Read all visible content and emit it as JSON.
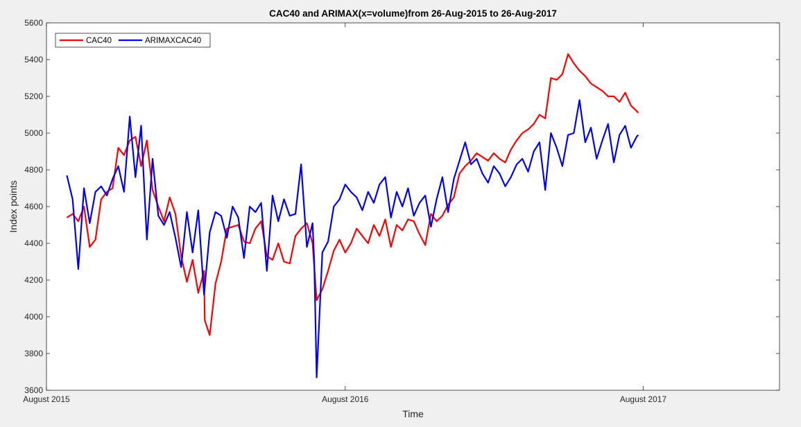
{
  "chart_data": {
    "type": "line",
    "title": "CAC40 and ARIMAX(x=volume)from 26-Aug-2015 to 26-Aug-2017",
    "xlabel": "Time",
    "ylabel": "Index points",
    "xlim": [
      "2015-08-01",
      "2018-01-15"
    ],
    "ylim": [
      3600,
      5600
    ],
    "yticks": [
      3600,
      3800,
      4000,
      4200,
      4400,
      4600,
      4800,
      5000,
      5200,
      5400,
      5600
    ],
    "xticks": [
      {
        "date": "2015-08-01",
        "label": "August 2015"
      },
      {
        "date": "2016-08-01",
        "label": "August 2016"
      },
      {
        "date": "2017-08-01",
        "label": "August 2017"
      }
    ],
    "grid": false,
    "legend": "top-left",
    "colors": {
      "CAC40": "#ff0000",
      "ARIMAXCAC40": "#0000ff"
    },
    "series": [
      {
        "name": "CAC40",
        "x": [
          "2015-08-26",
          "2015-09-02",
          "2015-09-09",
          "2015-09-16",
          "2015-09-23",
          "2015-09-30",
          "2015-10-07",
          "2015-10-14",
          "2015-10-21",
          "2015-10-28",
          "2015-11-04",
          "2015-11-11",
          "2015-11-18",
          "2015-11-25",
          "2015-12-02",
          "2015-12-09",
          "2015-12-16",
          "2015-12-23",
          "2015-12-30",
          "2016-01-06",
          "2016-01-13",
          "2016-01-20",
          "2016-01-27",
          "2016-02-03",
          "2016-02-10",
          "2016-02-11",
          "2016-02-17",
          "2016-02-24",
          "2016-03-02",
          "2016-03-09",
          "2016-03-16",
          "2016-03-23",
          "2016-03-30",
          "2016-04-06",
          "2016-04-13",
          "2016-04-20",
          "2016-04-27",
          "2016-05-04",
          "2016-05-11",
          "2016-05-18",
          "2016-05-25",
          "2016-06-01",
          "2016-06-08",
          "2016-06-15",
          "2016-06-22",
          "2016-06-27",
          "2016-07-04",
          "2016-07-11",
          "2016-07-18",
          "2016-07-25",
          "2016-08-01",
          "2016-08-08",
          "2016-08-15",
          "2016-08-22",
          "2016-08-29",
          "2016-09-05",
          "2016-09-12",
          "2016-09-19",
          "2016-09-26",
          "2016-10-03",
          "2016-10-10",
          "2016-10-17",
          "2016-10-24",
          "2016-10-31",
          "2016-11-07",
          "2016-11-14",
          "2016-11-21",
          "2016-11-28",
          "2016-12-05",
          "2016-12-12",
          "2016-12-19",
          "2016-12-26",
          "2017-01-02",
          "2017-01-09",
          "2017-01-16",
          "2017-01-23",
          "2017-01-30",
          "2017-02-06",
          "2017-02-13",
          "2017-02-20",
          "2017-02-27",
          "2017-03-06",
          "2017-03-13",
          "2017-03-20",
          "2017-03-27",
          "2017-04-03",
          "2017-04-10",
          "2017-04-17",
          "2017-04-24",
          "2017-05-01",
          "2017-05-08",
          "2017-05-15",
          "2017-05-22",
          "2017-05-29",
          "2017-06-05",
          "2017-06-12",
          "2017-06-19",
          "2017-06-26",
          "2017-07-03",
          "2017-07-10",
          "2017-07-17",
          "2017-07-24",
          "2017-07-26"
        ],
        "values": [
          4540,
          4560,
          4520,
          4600,
          4380,
          4420,
          4640,
          4680,
          4700,
          4920,
          4880,
          4960,
          4980,
          4820,
          4960,
          4690,
          4600,
          4520,
          4650,
          4560,
          4330,
          4190,
          4310,
          4130,
          4250,
          3980,
          3900,
          4180,
          4300,
          4480,
          4490,
          4500,
          4410,
          4400,
          4480,
          4520,
          4330,
          4310,
          4400,
          4300,
          4290,
          4440,
          4480,
          4510,
          4400,
          4090,
          4150,
          4250,
          4360,
          4420,
          4350,
          4400,
          4480,
          4440,
          4400,
          4500,
          4440,
          4530,
          4380,
          4500,
          4470,
          4530,
          4520,
          4450,
          4390,
          4560,
          4520,
          4550,
          4610,
          4650,
          4780,
          4820,
          4850,
          4890,
          4870,
          4850,
          4890,
          4860,
          4840,
          4910,
          4960,
          5000,
          5020,
          5050,
          5100,
          5080,
          5300,
          5290,
          5320,
          5430,
          5380,
          5340,
          5310,
          5270,
          5250,
          5230,
          5200,
          5200,
          5170,
          5220,
          5150,
          5120,
          5110
        ]
      },
      {
        "name": "ARIMAXCAC40",
        "x": [
          "2015-08-26",
          "2015-09-02",
          "2015-09-09",
          "2015-09-16",
          "2015-09-23",
          "2015-09-30",
          "2015-10-07",
          "2015-10-14",
          "2015-10-21",
          "2015-10-28",
          "2015-11-04",
          "2015-11-11",
          "2015-11-18",
          "2015-11-25",
          "2015-12-02",
          "2015-12-09",
          "2015-12-16",
          "2015-12-23",
          "2015-12-30",
          "2016-01-06",
          "2016-01-13",
          "2016-01-20",
          "2016-01-27",
          "2016-02-03",
          "2016-02-10",
          "2016-02-17",
          "2016-02-24",
          "2016-03-02",
          "2016-03-09",
          "2016-03-16",
          "2016-03-23",
          "2016-03-30",
          "2016-04-06",
          "2016-04-13",
          "2016-04-20",
          "2016-04-27",
          "2016-05-04",
          "2016-05-11",
          "2016-05-18",
          "2016-05-25",
          "2016-06-01",
          "2016-06-08",
          "2016-06-15",
          "2016-06-22",
          "2016-06-24",
          "2016-06-27",
          "2016-07-04",
          "2016-07-11",
          "2016-07-18",
          "2016-07-25",
          "2016-08-01",
          "2016-08-08",
          "2016-08-15",
          "2016-08-22",
          "2016-08-29",
          "2016-09-05",
          "2016-09-12",
          "2016-09-19",
          "2016-09-26",
          "2016-10-03",
          "2016-10-10",
          "2016-10-17",
          "2016-10-24",
          "2016-10-31",
          "2016-11-07",
          "2016-11-14",
          "2016-11-21",
          "2016-11-28",
          "2016-12-05",
          "2016-12-12",
          "2016-12-19",
          "2016-12-26",
          "2017-01-02",
          "2017-01-09",
          "2017-01-16",
          "2017-01-23",
          "2017-01-30",
          "2017-02-06",
          "2017-02-13",
          "2017-02-20",
          "2017-02-27",
          "2017-03-06",
          "2017-03-13",
          "2017-03-20",
          "2017-03-27",
          "2017-04-03",
          "2017-04-10",
          "2017-04-17",
          "2017-04-24",
          "2017-05-01",
          "2017-05-08",
          "2017-05-15",
          "2017-05-22",
          "2017-05-29",
          "2017-06-05",
          "2017-06-12",
          "2017-06-19",
          "2017-06-26",
          "2017-07-03",
          "2017-07-10",
          "2017-07-17",
          "2017-07-24",
          "2017-07-26"
        ],
        "values": [
          4770,
          4640,
          4260,
          4700,
          4510,
          4680,
          4710,
          4660,
          4750,
          4820,
          4680,
          5090,
          4760,
          5040,
          4420,
          4860,
          4550,
          4500,
          4570,
          4430,
          4270,
          4570,
          4350,
          4580,
          4120,
          4460,
          4570,
          4550,
          4430,
          4600,
          4540,
          4320,
          4600,
          4570,
          4620,
          4250,
          4660,
          4520,
          4640,
          4550,
          4560,
          4830,
          4380,
          4510,
          4300,
          3670,
          4350,
          4410,
          4600,
          4640,
          4720,
          4680,
          4650,
          4580,
          4680,
          4620,
          4720,
          4760,
          4540,
          4680,
          4600,
          4700,
          4550,
          4620,
          4660,
          4490,
          4640,
          4760,
          4570,
          4750,
          4850,
          4950,
          4830,
          4860,
          4780,
          4730,
          4820,
          4780,
          4710,
          4760,
          4830,
          4860,
          4790,
          4900,
          4950,
          4690,
          5000,
          4920,
          4820,
          4990,
          5000,
          5180,
          4950,
          5030,
          4860,
          4960,
          5050,
          4840,
          4990,
          5040,
          4920,
          4980,
          4990
        ]
      }
    ]
  }
}
